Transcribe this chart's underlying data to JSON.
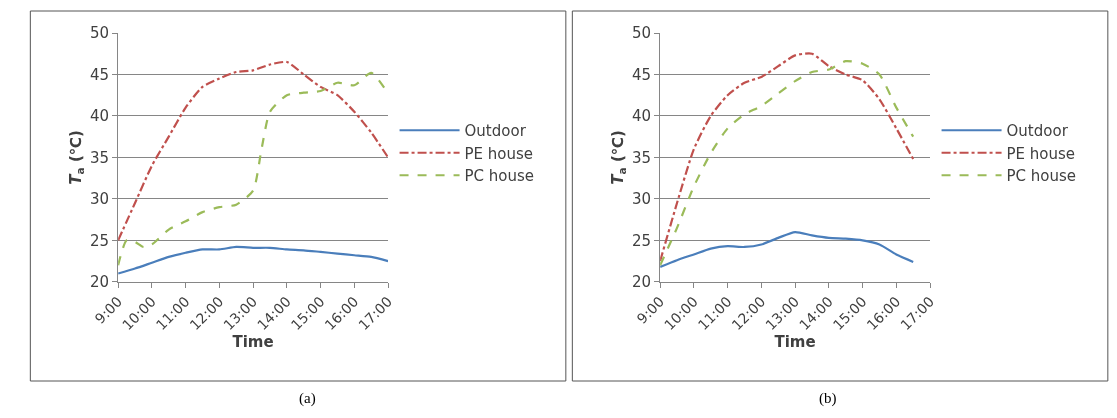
{
  "chart_data": [
    {
      "type": "line",
      "xlabel": "Time",
      "ylabel": "T$_{a}$ (℃)",
      "annotations": [
        "(a)"
      ],
      "xlim": [
        9,
        17
      ],
      "ylim": [
        20,
        50
      ],
      "yticks": [
        20,
        25,
        30,
        35,
        40,
        45,
        50
      ],
      "xticks": [
        {
          "value": 9,
          "label": "9:00"
        },
        {
          "value": 10,
          "label": "10:00"
        },
        {
          "value": 11,
          "label": "11:00"
        },
        {
          "value": 12,
          "label": "12:00"
        },
        {
          "value": 13,
          "label": "13:00"
        },
        {
          "value": 14,
          "label": "14:00"
        },
        {
          "value": 15,
          "label": "15:00"
        },
        {
          "value": 16,
          "label": "16:00"
        },
        {
          "value": 17,
          "label": "17:00"
        }
      ],
      "grid": "y",
      "legend": "right",
      "marker": "none",
      "series": [
        {
          "name": "Outdoor",
          "color": "#4a7ebb",
          "line_style": "solid",
          "x": [
            9,
            9.5,
            10,
            10.5,
            11,
            11.5,
            12,
            12.5,
            13,
            13.5,
            14,
            14.5,
            15,
            15.5,
            16,
            16.5,
            17
          ],
          "values": [
            21.0,
            21.6,
            22.3,
            23.0,
            23.5,
            23.9,
            23.9,
            24.2,
            24.1,
            24.1,
            23.9,
            23.8,
            23.6,
            23.4,
            23.2,
            23.0,
            22.5
          ]
        },
        {
          "name": "PE house",
          "color": "#c0504d",
          "line_style": "dashdot",
          "x": [
            9,
            9.5,
            10,
            10.5,
            11,
            11.5,
            12,
            12.5,
            13,
            13.5,
            14,
            14.5,
            15,
            15.5,
            16,
            16.5,
            17
          ],
          "values": [
            25,
            29.5,
            34,
            37.5,
            41,
            43.5,
            44.5,
            45.3,
            45.5,
            46.2,
            46.5,
            45,
            43.5,
            42.5,
            40.5,
            38,
            35
          ]
        },
        {
          "name": "PC house",
          "color": "#9bbb59",
          "line_style": "dashed",
          "x": [
            9,
            9.25,
            9.5,
            9.75,
            10,
            10.5,
            11,
            11.5,
            12,
            12.5,
            13,
            13.25,
            13.5,
            14,
            14.5,
            15,
            15.5,
            16,
            16.5,
            17
          ],
          "values": [
            22,
            25,
            24.8,
            24.2,
            24.5,
            26.3,
            27.3,
            28.4,
            29,
            29.3,
            31,
            36,
            40.5,
            42.5,
            42.8,
            43,
            44,
            43.7,
            45.2,
            42.7
          ]
        }
      ]
    },
    {
      "type": "line",
      "xlabel": "Time",
      "ylabel": "T$_{a}$ (℃)",
      "annotations": [
        "(b)"
      ],
      "xlim": [
        9,
        17
      ],
      "ylim": [
        20,
        50
      ],
      "yticks": [
        20,
        25,
        30,
        35,
        40,
        45,
        50
      ],
      "xticks": [
        {
          "value": 9,
          "label": "9:00"
        },
        {
          "value": 10,
          "label": "10:00"
        },
        {
          "value": 11,
          "label": "11:00"
        },
        {
          "value": 12,
          "label": "12:00"
        },
        {
          "value": 13,
          "label": "13:00"
        },
        {
          "value": 14,
          "label": "14:00"
        },
        {
          "value": 15,
          "label": "15:00"
        },
        {
          "value": 16,
          "label": "16:00"
        },
        {
          "value": 17,
          "label": "17:00"
        }
      ],
      "grid": "y",
      "legend": "right",
      "marker": "none",
      "series": [
        {
          "name": "Outdoor",
          "color": "#4a7ebb",
          "line_style": "solid",
          "x": [
            9,
            9.5,
            10,
            10.5,
            11,
            11.5,
            12,
            12.5,
            13,
            13.5,
            14,
            14.5,
            15,
            15.5,
            16,
            16.5
          ],
          "values": [
            21.8,
            22.6,
            23.3,
            24.0,
            24.3,
            24.2,
            24.5,
            25.3,
            26.0,
            25.6,
            25.3,
            25.2,
            25.0,
            24.5,
            23.3,
            22.4
          ]
        },
        {
          "name": "PE house",
          "color": "#c0504d",
          "line_style": "dashdot",
          "x": [
            9,
            9.5,
            10,
            10.5,
            11,
            11.5,
            12,
            12.5,
            13,
            13.5,
            14,
            14.5,
            15,
            15.5,
            16,
            16.5
          ],
          "values": [
            22.5,
            29.5,
            36,
            40,
            42.5,
            44,
            44.7,
            46,
            47.3,
            47.5,
            46,
            45,
            44.3,
            42,
            38.5,
            34.8
          ]
        },
        {
          "name": "PC house",
          "color": "#9bbb59",
          "line_style": "dashed",
          "x": [
            9,
            9.5,
            10,
            10.5,
            11,
            11.5,
            12,
            12.5,
            13,
            13.5,
            14,
            14.5,
            15,
            15.5,
            16,
            16.5
          ],
          "values": [
            22,
            26.5,
            31.5,
            35.5,
            38.5,
            40.2,
            41.2,
            42.7,
            44.2,
            45.3,
            45.6,
            46.6,
            46.3,
            45,
            41,
            37.5
          ]
        }
      ]
    }
  ]
}
